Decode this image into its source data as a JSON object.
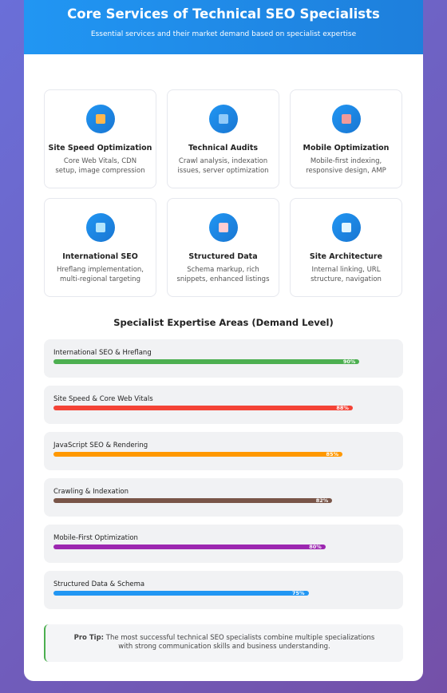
{
  "header": {
    "title": "Core Services of Technical SEO Specialists",
    "subtitle": "Essential services and their market demand based on specialist expertise"
  },
  "services": [
    {
      "title": "Site Speed Optimization",
      "description": "Core Web Vitals, CDN setup, image compression"
    },
    {
      "title": "Technical Audits",
      "description": "Crawl analysis, indexation issues, server optimization"
    },
    {
      "title": "Mobile Optimization",
      "description": "Mobile-first indexing, responsive design, AMP"
    },
    {
      "title": "International SEO",
      "description": "Hreflang implementation, multi-regional targeting"
    },
    {
      "title": "Structured Data",
      "description": "Schema markup, rich snippets, enhanced listings"
    },
    {
      "title": "Site Architecture",
      "description": "Internal linking, URL structure, navigation"
    }
  ],
  "expertise": {
    "title": "Specialist Expertise Areas (Demand Level)",
    "xlim": [
      0,
      100
    ],
    "items": [
      {
        "name": "International SEO & Hreflang",
        "value": 90,
        "value_label": "90%",
        "color": "#4caf50"
      },
      {
        "name": "Site Speed & Core Web Vitals",
        "value": 88,
        "value_label": "88%",
        "color": "#f44336"
      },
      {
        "name": "JavaScript SEO & Rendering",
        "value": 85,
        "value_label": "85%",
        "color": "#ff9800"
      },
      {
        "name": "Crawling & Indexation",
        "value": 82,
        "value_label": "82%",
        "color": "#795548"
      },
      {
        "name": "Mobile-First Optimization",
        "value": 80,
        "value_label": "80%",
        "color": "#9c27b0"
      },
      {
        "name": "Structured Data & Schema",
        "value": 75,
        "value_label": "75%",
        "color": "#2196f3"
      }
    ]
  },
  "tip": {
    "label": "Pro Tip:",
    "text": "The most successful technical SEO specialists combine multiple specializations with strong communication skills and business understanding."
  }
}
